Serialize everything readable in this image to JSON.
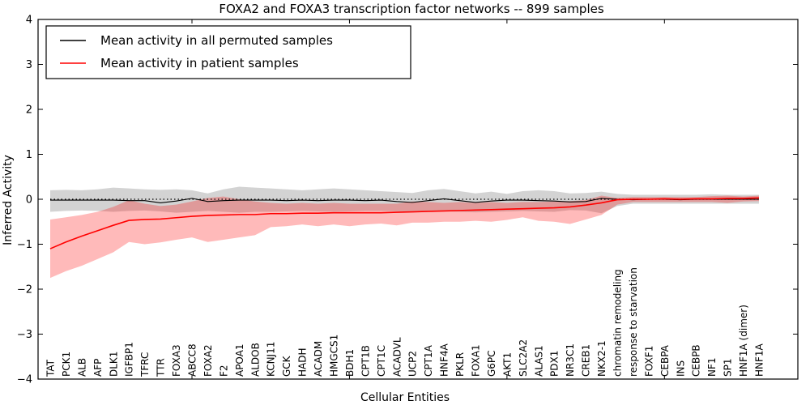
{
  "chart_data": {
    "type": "line",
    "title": "FOXA2 and FOXA3 transcription factor networks -- 899 samples",
    "xlabel": "Cellular Entities",
    "ylabel": "Inferred Activity",
    "ylim": [
      -4,
      4
    ],
    "yticks": [
      "4",
      "3",
      "2",
      "1",
      "0",
      "−1",
      "−2",
      "−3",
      "−4"
    ],
    "ytick_values": [
      4,
      3,
      2,
      1,
      0,
      -1,
      -2,
      -3,
      -4
    ],
    "top_tick_positions": [
      10,
      20,
      30,
      40
    ],
    "grid": false,
    "zero_line": "dotted",
    "legend": {
      "position": "upper-left",
      "entries": [
        {
          "label": "Mean activity in all permuted samples",
          "color": "#000000"
        },
        {
          "label": "Mean activity in patient samples",
          "color": "#ff0000"
        }
      ]
    },
    "colors": {
      "permuted_line": "#000000",
      "patient_line": "#ff0000",
      "permuted_band": "rgba(128,128,128,0.35)",
      "patient_band": "rgba(255,0,0,0.27)"
    },
    "categories": [
      "TAT",
      "PCK1",
      "ALB",
      "AFP",
      "DLK1",
      "IGFBP1",
      "TFRC",
      "TTR",
      "FOXA3",
      "ABCC8",
      "FOXA2",
      "F2",
      "APOA1",
      "ALDOB",
      "KCNJ11",
      "GCK",
      "HADH",
      "ACADM",
      "HMGCS1",
      "BDH1",
      "CPT1B",
      "CPT1C",
      "ACADVL",
      "UCP2",
      "CPT1A",
      "HNF4A",
      "PKLR",
      "FOXA1",
      "G6PC",
      "AKT1",
      "SLC2A2",
      "ALAS1",
      "PDX1",
      "NR3C1",
      "CREB1",
      "NKX2-1",
      "chromatin remodeling",
      "response to starvation",
      "FOXF1",
      "CEBPA",
      "INS",
      "CEBPB",
      "NF1",
      "SP1",
      "HNF1A (dimer)",
      "HNF1A"
    ],
    "series": [
      {
        "name": "Mean activity in all permuted samples",
        "values": [
          -0.02,
          -0.02,
          -0.02,
          -0.02,
          -0.02,
          -0.03,
          -0.03,
          -0.08,
          -0.04,
          0.02,
          -0.05,
          -0.03,
          -0.02,
          -0.02,
          -0.02,
          -0.03,
          -0.02,
          -0.03,
          -0.02,
          -0.02,
          -0.03,
          -0.02,
          -0.05,
          -0.07,
          -0.03,
          0.01,
          -0.03,
          -0.07,
          -0.04,
          -0.02,
          -0.02,
          -0.03,
          -0.04,
          -0.06,
          -0.05,
          0.02,
          0.0,
          -0.01,
          0.0,
          0.0,
          -0.01,
          0.0,
          0.0,
          0.0,
          0.0,
          0.0
        ],
        "upper": [
          0.2,
          0.21,
          0.2,
          0.22,
          0.26,
          0.24,
          0.22,
          0.21,
          0.22,
          0.2,
          0.13,
          0.22,
          0.28,
          0.26,
          0.24,
          0.22,
          0.2,
          0.22,
          0.24,
          0.22,
          0.2,
          0.18,
          0.16,
          0.14,
          0.2,
          0.23,
          0.18,
          0.13,
          0.17,
          0.12,
          0.18,
          0.2,
          0.18,
          0.13,
          0.14,
          0.17,
          0.12,
          0.1,
          0.1,
          0.1,
          0.1,
          0.1,
          0.11,
          0.1,
          0.1,
          0.1
        ],
        "lower": [
          -0.28,
          -0.26,
          -0.25,
          -0.26,
          -0.28,
          -0.26,
          -0.25,
          -0.27,
          -0.3,
          -0.28,
          -0.26,
          -0.28,
          -0.3,
          -0.28,
          -0.28,
          -0.27,
          -0.26,
          -0.27,
          -0.28,
          -0.27,
          -0.26,
          -0.26,
          -0.27,
          -0.28,
          -0.26,
          -0.27,
          -0.28,
          -0.29,
          -0.28,
          -0.27,
          -0.26,
          -0.27,
          -0.28,
          -0.24,
          -0.25,
          -0.31,
          -0.15,
          -0.1,
          -0.1,
          -0.1,
          -0.1,
          -0.1,
          -0.1,
          -0.1,
          -0.1,
          -0.1
        ]
      },
      {
        "name": "Mean activity in patient samples",
        "values": [
          -1.1,
          -0.95,
          -0.82,
          -0.7,
          -0.58,
          -0.47,
          -0.45,
          -0.44,
          -0.41,
          -0.38,
          -0.36,
          -0.35,
          -0.34,
          -0.34,
          -0.32,
          -0.32,
          -0.31,
          -0.31,
          -0.3,
          -0.3,
          -0.3,
          -0.3,
          -0.29,
          -0.28,
          -0.27,
          -0.26,
          -0.25,
          -0.24,
          -0.23,
          -0.22,
          -0.21,
          -0.2,
          -0.19,
          -0.17,
          -0.13,
          -0.08,
          -0.01,
          0.0,
          0.0,
          0.01,
          0.0,
          0.01,
          0.01,
          0.02,
          0.02,
          0.03
        ],
        "upper": [
          -0.45,
          -0.4,
          -0.35,
          -0.28,
          -0.17,
          -0.02,
          -0.1,
          -0.15,
          -0.12,
          -0.05,
          0.03,
          0.06,
          0.0,
          -0.05,
          -0.08,
          -0.1,
          -0.08,
          -0.1,
          -0.08,
          -0.1,
          -0.1,
          -0.1,
          -0.1,
          -0.05,
          -0.06,
          -0.08,
          -0.06,
          -0.08,
          -0.06,
          -0.08,
          -0.06,
          -0.06,
          -0.05,
          -0.04,
          -0.02,
          0.08,
          0.03,
          0.05,
          0.05,
          0.05,
          0.05,
          0.05,
          0.07,
          0.08,
          0.06,
          0.08
        ],
        "lower": [
          -1.75,
          -1.6,
          -1.48,
          -1.33,
          -1.18,
          -0.95,
          -1.0,
          -0.96,
          -0.9,
          -0.85,
          -0.95,
          -0.9,
          -0.85,
          -0.8,
          -0.62,
          -0.6,
          -0.56,
          -0.6,
          -0.56,
          -0.6,
          -0.56,
          -0.54,
          -0.58,
          -0.52,
          -0.52,
          -0.5,
          -0.5,
          -0.48,
          -0.5,
          -0.46,
          -0.4,
          -0.48,
          -0.5,
          -0.55,
          -0.45,
          -0.35,
          -0.12,
          -0.06,
          -0.06,
          -0.06,
          -0.06,
          -0.06,
          -0.06,
          -0.08,
          -0.05,
          -0.04
        ]
      }
    ]
  }
}
